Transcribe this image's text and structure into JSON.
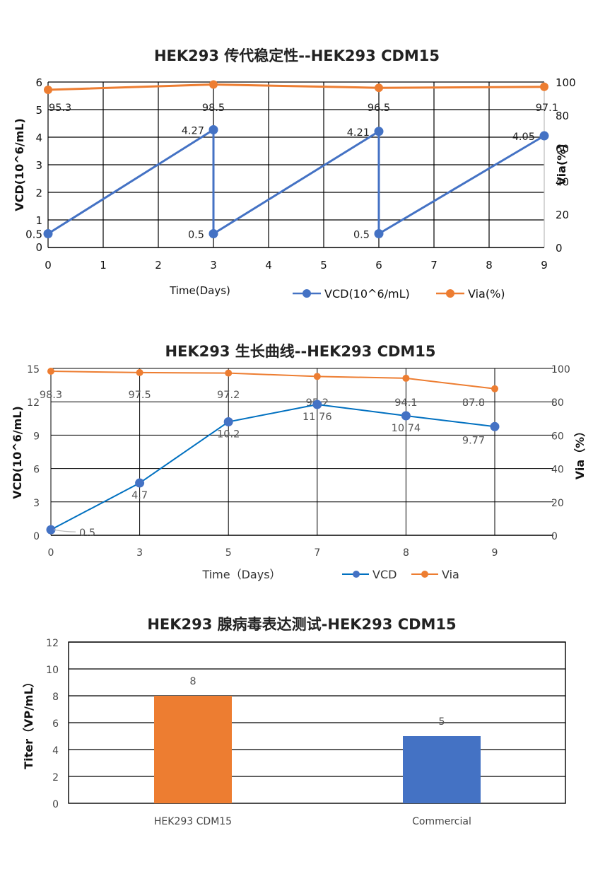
{
  "colors": {
    "vcd_blue": "#4472C4",
    "vcd_line_blue_2": "#0070C0",
    "via_orange": "#ED7D31",
    "grid": "#000000"
  },
  "chart_data": [
    {
      "type": "line",
      "title": "HEK293 传代稳定性--HEK293 CDM15",
      "xlabel": "Time(Days)",
      "ylabel": "VCD(10^6/mL)",
      "y2label": "Via(%)",
      "x_ticks": [
        "0",
        "1",
        "2",
        "3",
        "4",
        "5",
        "6",
        "7",
        "8",
        "9"
      ],
      "y_ticks": [
        "0",
        "0.5",
        "1",
        "2",
        "3",
        "4",
        "5",
        "6"
      ],
      "y2_ticks": [
        "0",
        "20",
        "40",
        "60",
        "80",
        "100"
      ],
      "ylim": [
        0,
        6
      ],
      "y2lim": [
        0,
        100
      ],
      "grid": true,
      "legend_position": "bottom-right",
      "series": [
        {
          "name": "VCD(10^6/mL)",
          "axis": "left",
          "points": [
            [
              0,
              0.5
            ],
            [
              3,
              4.27
            ],
            [
              3,
              0.5
            ],
            [
              6,
              4.21
            ],
            [
              6,
              0.5
            ],
            [
              9,
              4.05
            ]
          ],
          "labels": [
            "0.5",
            "4.27",
            "0.5",
            "4.21",
            "0.5",
            "4.05"
          ]
        },
        {
          "name": "Via(%)",
          "axis": "right",
          "points": [
            [
              0,
              95.3
            ],
            [
              3,
              98.5
            ],
            [
              6,
              96.5
            ],
            [
              9,
              97.1
            ]
          ],
          "labels": [
            "95.3",
            "98.5",
            "96.5",
            "97.1"
          ]
        }
      ]
    },
    {
      "type": "line",
      "title": "HEK293 生长曲线--HEK293 CDM15",
      "xlabel": "Time（Days）",
      "ylabel": "VCD(10^6/mL)",
      "y2label": "Via（%）",
      "categories": [
        "0",
        "3",
        "5",
        "7",
        "8",
        "9"
      ],
      "y_ticks": [
        "0",
        "3",
        "6",
        "9",
        "12",
        "15"
      ],
      "y2_ticks": [
        "0",
        "20",
        "40",
        "60",
        "80",
        "100"
      ],
      "ylim": [
        0,
        15
      ],
      "y2lim": [
        0,
        100
      ],
      "grid": true,
      "legend_position": "bottom",
      "series": [
        {
          "name": "VCD",
          "axis": "left",
          "values": [
            0.5,
            4.7,
            10.2,
            11.76,
            10.74,
            9.77
          ]
        },
        {
          "name": "Via",
          "axis": "right",
          "values": [
            98.3,
            97.5,
            97.2,
            95.2,
            94.1,
            87.8
          ]
        }
      ]
    },
    {
      "type": "bar",
      "title": "HEK293 腺病毒表达测试-HEK293 CDM15",
      "xlabel": "",
      "ylabel": "Titer（VP/mL）",
      "categories": [
        "HEK293 CDM15",
        "Commercial"
      ],
      "values": [
        8,
        5
      ],
      "value_labels": [
        "8",
        "5"
      ],
      "bar_colors": [
        "#ED7D31",
        "#4472C4"
      ],
      "y_ticks": [
        "0",
        "2",
        "4",
        "6",
        "8",
        "10",
        "12"
      ],
      "ylim": [
        0,
        12
      ],
      "grid": true
    }
  ],
  "chart1": {
    "title": "HEK293 传代稳定性--HEK293 CDM15",
    "xlabel": "Time(Days)",
    "ylabel": "VCD(10^6/mL)",
    "y2label": "Via(%)",
    "legend": {
      "vcd": "VCD(10^6/mL)",
      "via": "Via(%)"
    }
  },
  "chart2": {
    "title": "HEK293 生长曲线--HEK293 CDM15",
    "xlabel": "Time（Days）",
    "ylabel": "VCD(10^6/mL)",
    "y2label": "Via（%）",
    "legend": {
      "vcd": "VCD",
      "via": "Via"
    }
  },
  "chart3": {
    "title": "HEK293 腺病毒表达测试-HEK293 CDM15",
    "ylabel": "Titer（VP/mL）"
  }
}
